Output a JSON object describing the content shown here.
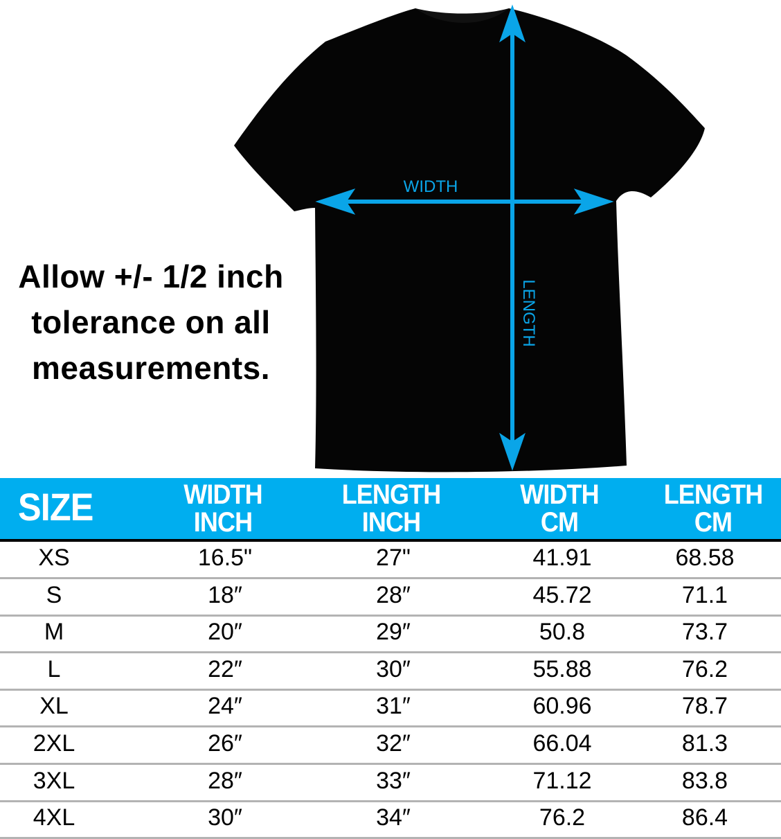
{
  "colors": {
    "accent": "#00aeef",
    "arrow": "#0aa5e8",
    "shirt": "#050505",
    "separator": "#b3b3b3"
  },
  "diagram": {
    "width_label": "WIDTH",
    "length_label": "LENGTH"
  },
  "note": {
    "lines": [
      "Allow +/- 1/2 inch",
      "tolerance on all",
      "measurements."
    ]
  },
  "table": {
    "headers": [
      [
        "SIZE"
      ],
      [
        "WIDTH",
        "INCH"
      ],
      [
        "LENGTH",
        "INCH"
      ],
      [
        "WIDTH",
        "CM"
      ],
      [
        "LENGTH",
        "CM"
      ]
    ],
    "rows": [
      [
        "XS",
        "16.5\"",
        "27\"",
        "41.91",
        "68.58"
      ],
      [
        "S",
        "18″",
        "28″",
        "45.72",
        "71.1"
      ],
      [
        "M",
        "20″",
        "29″",
        "50.8",
        "73.7"
      ],
      [
        "L",
        "22″",
        "30″",
        "55.88",
        "76.2"
      ],
      [
        "XL",
        "24″",
        "31″",
        "60.96",
        "78.7"
      ],
      [
        "2XL",
        "26″",
        "32″",
        "66.04",
        "81.3"
      ],
      [
        "3XL",
        "28″",
        "33″",
        "71.12",
        "83.8"
      ],
      [
        "4XL",
        "30″",
        "34″",
        "76.2",
        "86.4"
      ]
    ]
  }
}
